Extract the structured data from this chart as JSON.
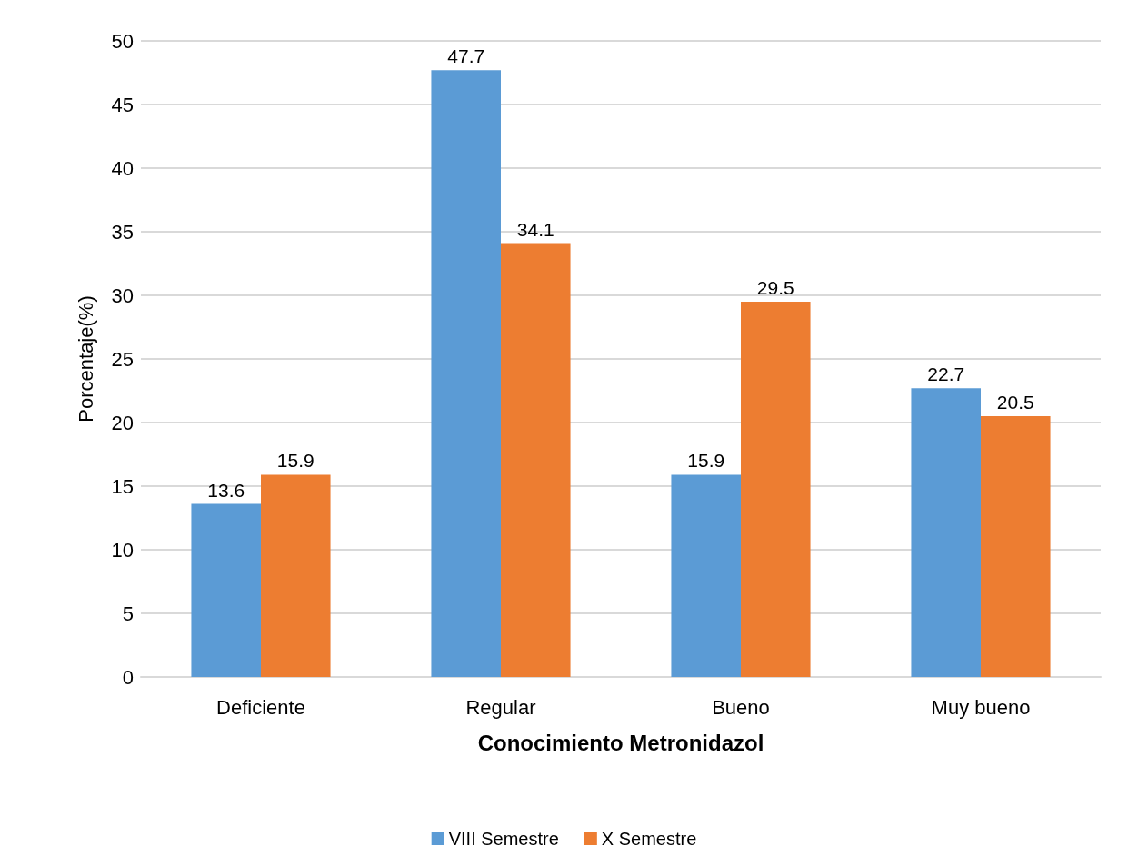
{
  "chart_data": {
    "type": "bar",
    "xlabel": "Conocimiento Metronidazol",
    "ylabel": "Porcentaje(%)",
    "categories": [
      "Deficiente",
      "Regular",
      "Bueno",
      "Muy bueno"
    ],
    "series": [
      {
        "name": "VIII Semestre",
        "color": "#5b9bd5",
        "values": [
          13.6,
          47.7,
          15.9,
          22.7
        ]
      },
      {
        "name": "X Semestre",
        "color": "#ed7d31",
        "values": [
          15.9,
          34.1,
          29.5,
          20.5
        ]
      }
    ],
    "ylim": [
      0,
      50
    ],
    "yticks": [
      0,
      5,
      10,
      15,
      20,
      25,
      30,
      35,
      40,
      45,
      50
    ],
    "grid": "y",
    "legend": "bottom",
    "data_labels": true
  }
}
